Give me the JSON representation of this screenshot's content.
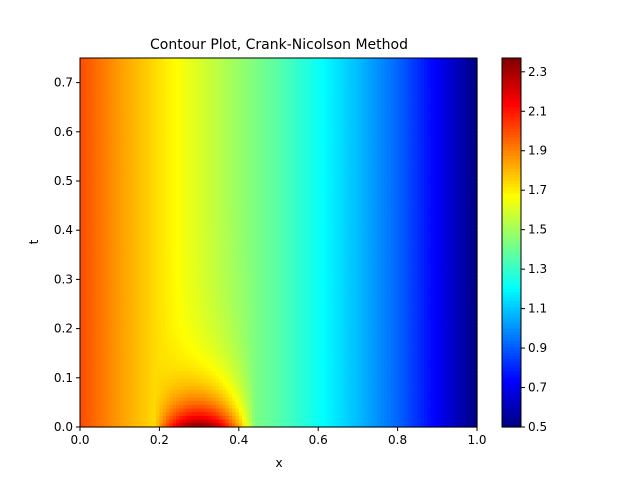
{
  "chart_data": {
    "type": "heatmap",
    "title": "Contour Plot, Crank-Nicolson Method",
    "xlabel": "x",
    "ylabel": "t",
    "xlim": [
      0,
      1
    ],
    "ylim": [
      0,
      0.75
    ],
    "x_ticks": [
      "0.0",
      "0.2",
      "0.4",
      "0.6",
      "0.8",
      "1.0"
    ],
    "y_ticks": [
      "0.0",
      "0.1",
      "0.2",
      "0.3",
      "0.4",
      "0.5",
      "0.6",
      "0.7"
    ],
    "colorbar": {
      "range": [
        0.5,
        2.37
      ],
      "ticks": [
        "0.5",
        "0.7",
        "0.9",
        "1.1",
        "1.3",
        "1.5",
        "1.7",
        "1.9",
        "2.1",
        "2.3"
      ],
      "colormap": "jet"
    },
    "field_description_values": {
      "steady_profile_x": [
        0.0,
        0.1,
        0.2,
        0.3,
        0.4,
        0.5,
        0.6,
        0.7,
        0.8,
        0.9,
        1.0
      ],
      "steady_profile_u": [
        2.0,
        1.85,
        1.72,
        1.6,
        1.48,
        1.36,
        1.22,
        1.08,
        0.92,
        0.72,
        0.5
      ],
      "initial_peak_x": 0.3,
      "initial_peak_u": 2.37
    }
  }
}
